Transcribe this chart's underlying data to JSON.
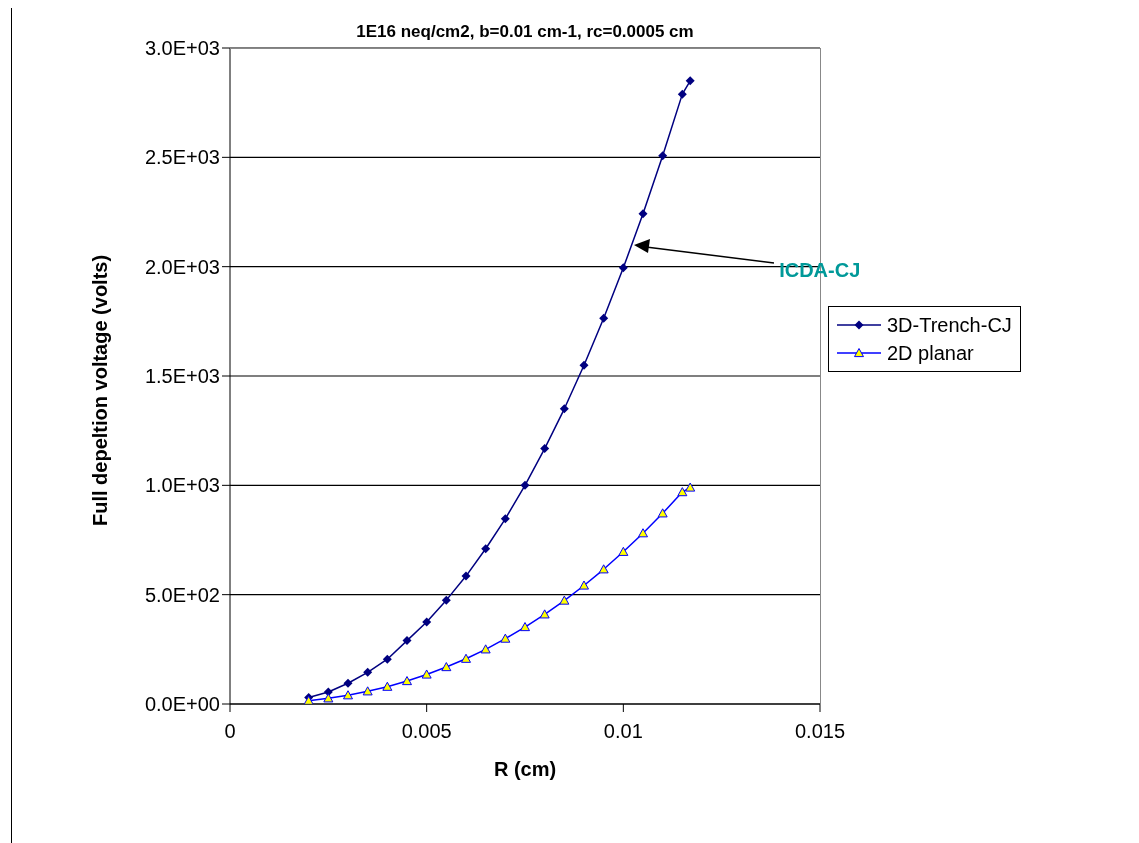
{
  "chart_data": {
    "type": "line",
    "title": "1E16 neq/cm2, b=0.01 cm-1, rc=0.0005 cm",
    "xlabel": "R (cm)",
    "ylabel": "Full depeltion voltage (volts)",
    "x": [
      0.002,
      0.0025,
      0.003,
      0.0035,
      0.004,
      0.0045,
      0.005,
      0.0055,
      0.006,
      0.0065,
      0.007,
      0.0075,
      0.008,
      0.0085,
      0.009,
      0.0095,
      0.01,
      0.0105,
      0.011,
      0.0115,
      0.0117
    ],
    "series": [
      {
        "name": "3D-Trench-CJ",
        "color": "#000080",
        "marker": "diamond",
        "values": [
          30,
          55,
          95,
          145,
          205,
          290,
          375,
          475,
          585,
          710,
          847,
          1000,
          1168,
          1350,
          1549,
          1764,
          1995,
          2242,
          2507,
          2789,
          2850
        ]
      },
      {
        "name": "2D planar",
        "color": "#0000ff",
        "marker": "triangle",
        "values": [
          15,
          26,
          40,
          58,
          79,
          105,
          135,
          169,
          207,
          250,
          299,
          352,
          410,
          473,
          542,
          616,
          696,
          781,
          872,
          969,
          990
        ]
      }
    ],
    "xlim": [
      0,
      0.015
    ],
    "xticks": [
      0,
      0.005,
      0.01,
      0.015
    ],
    "ylim": [
      0,
      3000
    ],
    "yticks": [
      {
        "value": 0,
        "label": "0.0E+00"
      },
      {
        "value": 500,
        "label": "5.0E+02"
      },
      {
        "value": 1000,
        "label": "1.0E+03"
      },
      {
        "value": 1500,
        "label": "1.5E+03"
      },
      {
        "value": 2000,
        "label": "2.0E+03"
      },
      {
        "value": 2500,
        "label": "2.5E+03"
      },
      {
        "value": 3000,
        "label": "3.0E+03"
      }
    ],
    "grid": "y",
    "legend": "right",
    "line_style": "solid",
    "annotations": [
      "ICDA-CJ"
    ]
  }
}
